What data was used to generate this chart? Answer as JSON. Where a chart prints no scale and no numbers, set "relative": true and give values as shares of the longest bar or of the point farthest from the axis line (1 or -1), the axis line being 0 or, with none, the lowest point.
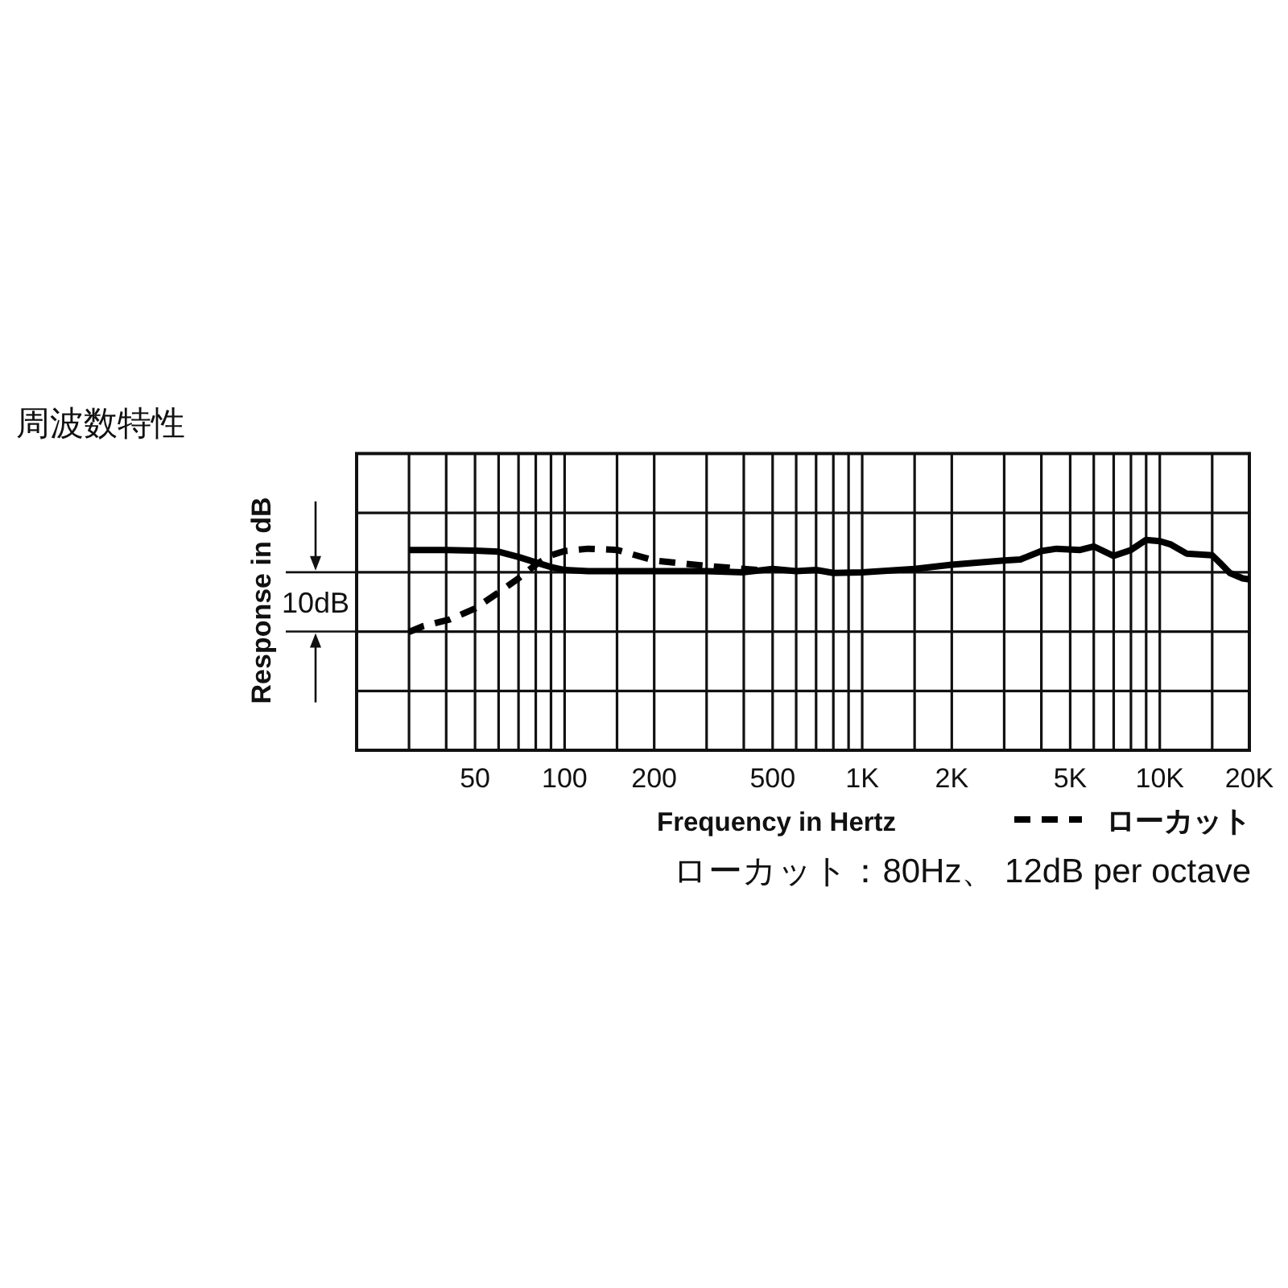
{
  "chart_data": {
    "type": "line",
    "title": "周波数特性",
    "xlabel": "Frequency in Hertz",
    "ylabel": "Response in dB",
    "log": "x",
    "xlim": [
      20,
      20000
    ],
    "relative": true,
    "xticks": [
      {
        "value": 30,
        "label": null
      },
      {
        "value": 40,
        "label": null
      },
      50,
      {
        "value": 60,
        "label": null
      },
      {
        "value": 70,
        "label": null
      },
      {
        "value": 80,
        "label": null
      },
      {
        "value": 90,
        "label": null
      },
      100,
      {
        "value": 150,
        "label": null
      },
      200,
      {
        "value": 300,
        "label": null
      },
      {
        "value": 400,
        "label": null
      },
      500,
      {
        "value": 600,
        "label": null
      },
      {
        "value": 700,
        "label": null
      },
      {
        "value": 800,
        "label": null
      },
      {
        "value": 900,
        "label": null
      },
      {
        "value": 1000,
        "label": "1K"
      },
      {
        "value": 1500,
        "label": null
      },
      {
        "value": 2000,
        "label": "2K"
      },
      {
        "value": 3000,
        "label": null
      },
      {
        "value": 4000,
        "label": null
      },
      {
        "value": 5000,
        "label": "5K"
      },
      {
        "value": 6000,
        "label": null
      },
      {
        "value": 7000,
        "label": null
      },
      {
        "value": 8000,
        "label": null
      },
      {
        "value": 9000,
        "label": null
      },
      {
        "value": 10000,
        "label": "10K"
      },
      {
        "value": 15000,
        "label": null
      },
      {
        "value": 20000,
        "label": "20K"
      }
    ],
    "grid": true,
    "legend": "bottom right",
    "annotations": [
      "10dB",
      "ローカット：80Hz、 12dB per octave"
    ],
    "series": [
      {
        "color": "#000000",
        "line_style": "solid",
        "x": [
          30,
          40,
          50,
          60,
          70,
          80,
          90,
          100,
          120,
          150,
          200,
          300,
          400,
          500,
          600,
          700,
          800,
          1000,
          1500,
          2000,
          3000,
          3400,
          4000,
          4500,
          5400,
          6000,
          7000,
          8000,
          9000,
          10000,
          10900,
          12300,
          15000,
          16000,
          17200,
          19000,
          20000
        ],
        "values": [
          0.952,
          0.952,
          0.949,
          0.944,
          0.919,
          0.893,
          0.871,
          0.857,
          0.851,
          0.851,
          0.851,
          0.851,
          0.846,
          0.862,
          0.851,
          0.857,
          0.843,
          0.846,
          0.862,
          0.882,
          0.902,
          0.907,
          0.947,
          0.958,
          0.952,
          0.969,
          0.924,
          0.952,
          1,
          0.994,
          0.978,
          0.935,
          0.927,
          0.888,
          0.843,
          0.817,
          0.812
        ]
      },
      {
        "name": "ローカット",
        "color": "#000000",
        "line_style": "dashed",
        "x": [
          30,
          33.5,
          41,
          50,
          60,
          70,
          80,
          90,
          100,
          120,
          150,
          200,
          300,
          400,
          450
        ],
        "values": [
          0.562,
          0.59,
          0.621,
          0.674,
          0.75,
          0.817,
          0.882,
          0.927,
          0.947,
          0.958,
          0.952,
          0.902,
          0.876,
          0.862,
          0.857
        ]
      }
    ]
  }
}
